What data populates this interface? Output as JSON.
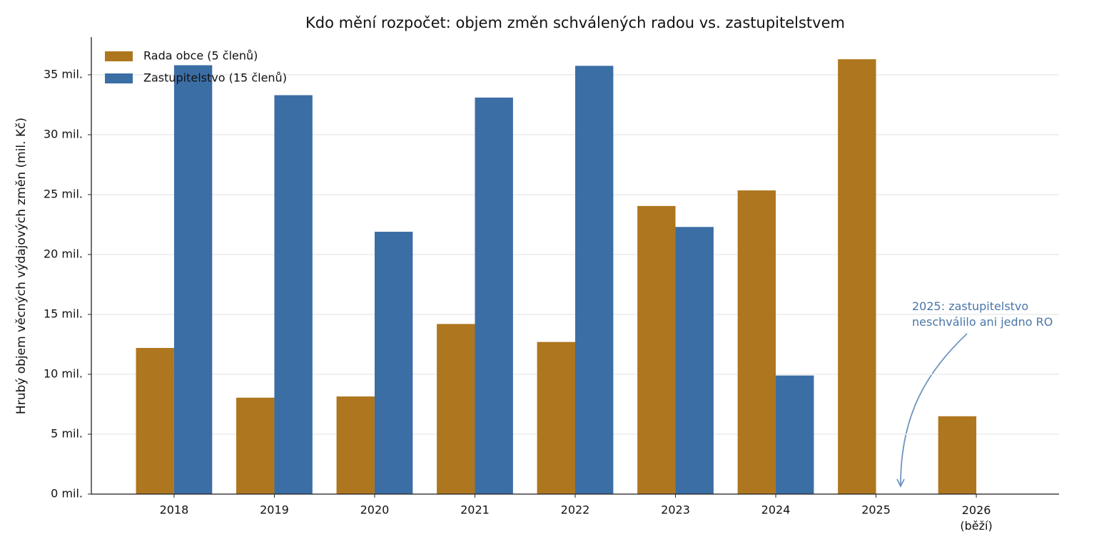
{
  "chart_data": {
    "type": "bar",
    "title": "Kdo mění rozpočet: objem změn schválených radou vs. zastupitelstvem",
    "y_label": "Hrubý objem věcných výdajových změn (mil. Kč)",
    "categories": [
      "2018",
      "2019",
      "2020",
      "2021",
      "2022",
      "2023",
      "2024",
      "2025",
      "2026\n(běží)"
    ],
    "series": [
      {
        "name": "Rada obce (5 členů)",
        "color": "#ae761e",
        "values": [
          12.2,
          8.05,
          8.15,
          14.2,
          12.7,
          24.05,
          25.35,
          36.3,
          6.5
        ]
      },
      {
        "name": "Zastupitelstvo (15 členů)",
        "color": "#3b6ea5",
        "values": [
          35.8,
          33.3,
          21.9,
          33.1,
          35.75,
          22.3,
          9.9,
          0,
          null
        ]
      }
    ],
    "ylim": [
      0,
      38.15
    ],
    "yticks": [
      {
        "value": 0,
        "label": "0 mil."
      },
      {
        "value": 5,
        "label": "5 mil."
      },
      {
        "value": 10,
        "label": "10 mil."
      },
      {
        "value": 15,
        "label": "15 mil."
      },
      {
        "value": 20,
        "label": "20 mil."
      },
      {
        "value": 25,
        "label": "25 mil."
      },
      {
        "value": 30,
        "label": "30 mil."
      },
      {
        "value": 35,
        "label": "35 mil."
      }
    ],
    "grid": true,
    "legend": "upper left",
    "annotation": {
      "text": "2025: zastupitelstvo\nneschválilo ani jedno RO",
      "color": "#4a76a8"
    }
  }
}
